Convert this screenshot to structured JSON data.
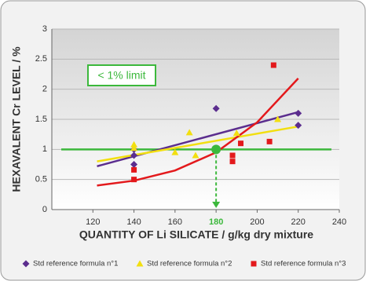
{
  "chart_data": {
    "type": "scatter",
    "y_label": "HEXAVALENT Cr LEVEL / %",
    "x_label": "QUANTITY OF Li SILICATE / g/kg dry mixture",
    "xlim": [
      100,
      240
    ],
    "xticks": [
      120,
      140,
      160,
      180,
      200,
      220,
      240
    ],
    "ylim": [
      0,
      3
    ],
    "yticks": [
      0,
      0.5,
      1,
      1.5,
      2,
      2.5,
      3
    ],
    "grid": true,
    "limit": {
      "value": 1,
      "x": 180,
      "color": "#3cb83c",
      "label": "< 1% limit"
    },
    "series": [
      {
        "name": "Std reference formula n°1",
        "color": "#5b2d8e",
        "marker": "diamond",
        "x": [
          140,
          140,
          140,
          180,
          220,
          220
        ],
        "values": [
          1.0,
          0.9,
          0.75,
          1.68,
          1.6,
          1.4
        ],
        "trend": {
          "x": [
            122,
            220
          ],
          "values": [
            0.72,
            1.62
          ]
        }
      },
      {
        "name": "Std reference formula n°2",
        "color": "#f2df10",
        "marker": "triangle",
        "x": [
          140,
          140,
          160,
          167,
          170,
          190,
          210
        ],
        "values": [
          1.08,
          1.02,
          0.95,
          1.28,
          0.9,
          1.27,
          1.5
        ],
        "trend": {
          "x": [
            122,
            220
          ],
          "values": [
            0.8,
            1.38
          ]
        }
      },
      {
        "name": "Std reference formula n°3",
        "color": "#e3191c",
        "marker": "square",
        "x": [
          140,
          140,
          188,
          188,
          192,
          206,
          208
        ],
        "values": [
          0.5,
          0.66,
          0.9,
          0.8,
          1.1,
          1.13,
          2.4
        ],
        "trend": {
          "x": [
            122,
            140,
            160,
            180,
            200,
            220
          ],
          "values": [
            0.4,
            0.48,
            0.65,
            0.95,
            1.45,
            2.18
          ]
        }
      }
    ]
  }
}
